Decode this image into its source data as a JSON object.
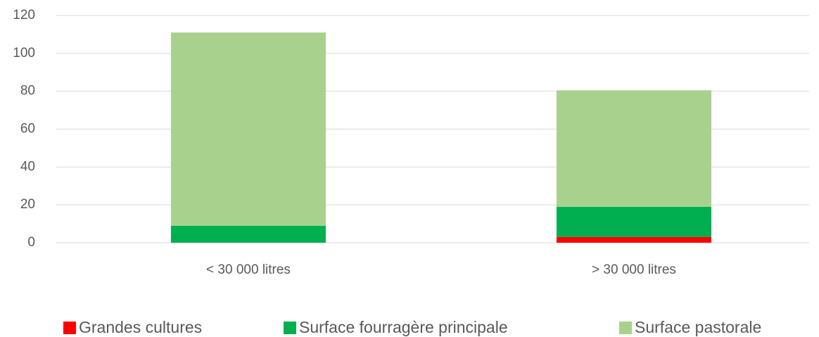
{
  "chart_data": {
    "type": "stacked_bar",
    "categories": [
      "< 30 000 litres",
      "> 30 000 litres"
    ],
    "series": [
      {
        "name": "Grandes cultures",
        "color": "#ff0000",
        "values": [
          0,
          3
        ]
      },
      {
        "name": "Surface fourragère principale",
        "color": "#00b050",
        "values": [
          9,
          16
        ]
      },
      {
        "name": "Surface pastorale",
        "color": "#a9d18e",
        "values": [
          102,
          61.5
        ]
      }
    ],
    "ylim": [
      0,
      120
    ],
    "yticks": [
      0,
      20,
      40,
      60,
      80,
      100,
      120
    ],
    "grid": true,
    "legend": "bottom"
  }
}
